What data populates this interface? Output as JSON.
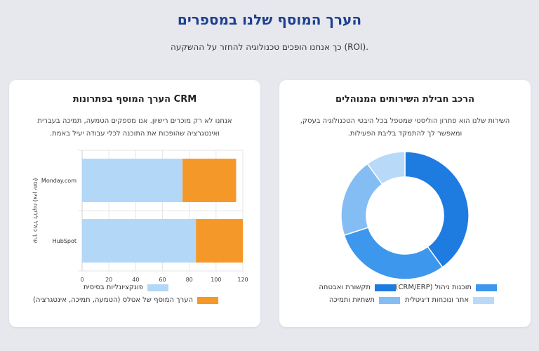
{
  "header": {
    "title": "הערך המוסף שלנו במספרים",
    "subtitle": "כך אנחנו הופכים טכנולוגיה להחזר על ההשקעה (ROI)."
  },
  "left_card": {
    "title": "הערך המוסף בפתרונות CRM",
    "description": "אנחנו לא רק מוכרים רישיון. אנו מספקים הטמעה, תמיכה בעברית ואינטגרציה שהופכות את התוכנה לכלי עבודה יעיל באמת."
  },
  "right_card": {
    "title": "הרכב חבילת השירותים המנוהלים",
    "description": "השירות שלנו הוא פתרון הוליסטי שמטפל בכל היבטי הטכנולוגיה בעסק, ומאפשר לך להתמקד בליבת הפעילות."
  },
  "chart_data": [
    {
      "type": "bar",
      "orientation": "horizontal",
      "stacked": true,
      "categories": [
        "Monday.com",
        "HubSpot"
      ],
      "series": [
        {
          "name": "פונקציונליות בסיסית",
          "values": [
            75,
            85
          ],
          "color": "#b3d7f7"
        },
        {
          "name": "הערך המוסף של אטלס (הטמעה, תמיכה, אינטגרציה)",
          "values": [
            40,
            35
          ],
          "color": "#f5982a"
        }
      ],
      "ylabel": "ערך כולל ללקוח (ציון יחסי)",
      "xlim": [
        0,
        120
      ],
      "xticks": [
        "0",
        "20",
        "40",
        "60",
        "80",
        "100",
        "120"
      ],
      "grid": true,
      "legend": "bottom"
    },
    {
      "type": "pie",
      "donut": true,
      "labels": [
        "תקשורת ואבטחה",
        "תוכנות ניהול (CRM/ERP)",
        "תשתיות ותמיכה",
        "אתר ונוכחות דיגיטלית"
      ],
      "values": [
        40,
        30,
        20,
        10
      ],
      "colors": [
        "#1e7be0",
        "#3d97ec",
        "#84bdf3",
        "#b9d9f8"
      ],
      "legend": "bottom"
    }
  ]
}
